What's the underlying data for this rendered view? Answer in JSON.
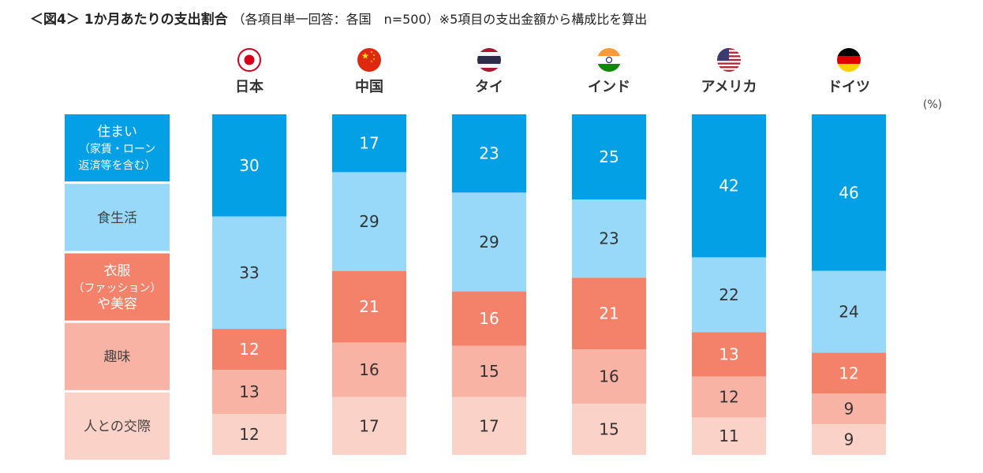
{
  "title": {
    "main": "＜図4＞ 1か月あたりの支出割合",
    "sub": "（各項目単一回答：各国　n=500）※5項目の支出金額から構成比を算出"
  },
  "chart_data": {
    "type": "bar",
    "stacked": true,
    "orientation": "vertical",
    "unit_label": "(%)",
    "categories": [
      "日本",
      "中国",
      "タイ",
      "インド",
      "アメリカ",
      "ドイツ"
    ],
    "flags": [
      "japan-flag-icon",
      "china-flag-icon",
      "thailand-flag-icon",
      "india-flag-icon",
      "usa-flag-icon",
      "germany-flag-icon"
    ],
    "series": [
      {
        "name": "住まい（家賃・ローン返済等を含む）",
        "lines": [
          "住まい",
          "（家賃・ローン",
          "返済等を含む）"
        ],
        "color": "#03A0E6",
        "values": [
          30,
          17,
          23,
          25,
          42,
          46
        ]
      },
      {
        "name": "食生活",
        "lines": [
          "食生活"
        ],
        "color": "#98D9FA",
        "values": [
          33,
          29,
          29,
          23,
          22,
          24
        ]
      },
      {
        "name": "衣服（ファッション）や美容",
        "lines": [
          "衣服",
          "（ファッション）",
          "や美容"
        ],
        "color": "#F4826A",
        "values": [
          12,
          21,
          16,
          21,
          13,
          12
        ]
      },
      {
        "name": "趣味",
        "lines": [
          "趣味"
        ],
        "color": "#F8B3A4",
        "values": [
          13,
          16,
          15,
          16,
          12,
          9
        ]
      },
      {
        "name": "人との交際",
        "lines": [
          "人との交際"
        ],
        "color": "#FBD2C8",
        "values": [
          12,
          17,
          17,
          15,
          11,
          9
        ]
      }
    ]
  }
}
